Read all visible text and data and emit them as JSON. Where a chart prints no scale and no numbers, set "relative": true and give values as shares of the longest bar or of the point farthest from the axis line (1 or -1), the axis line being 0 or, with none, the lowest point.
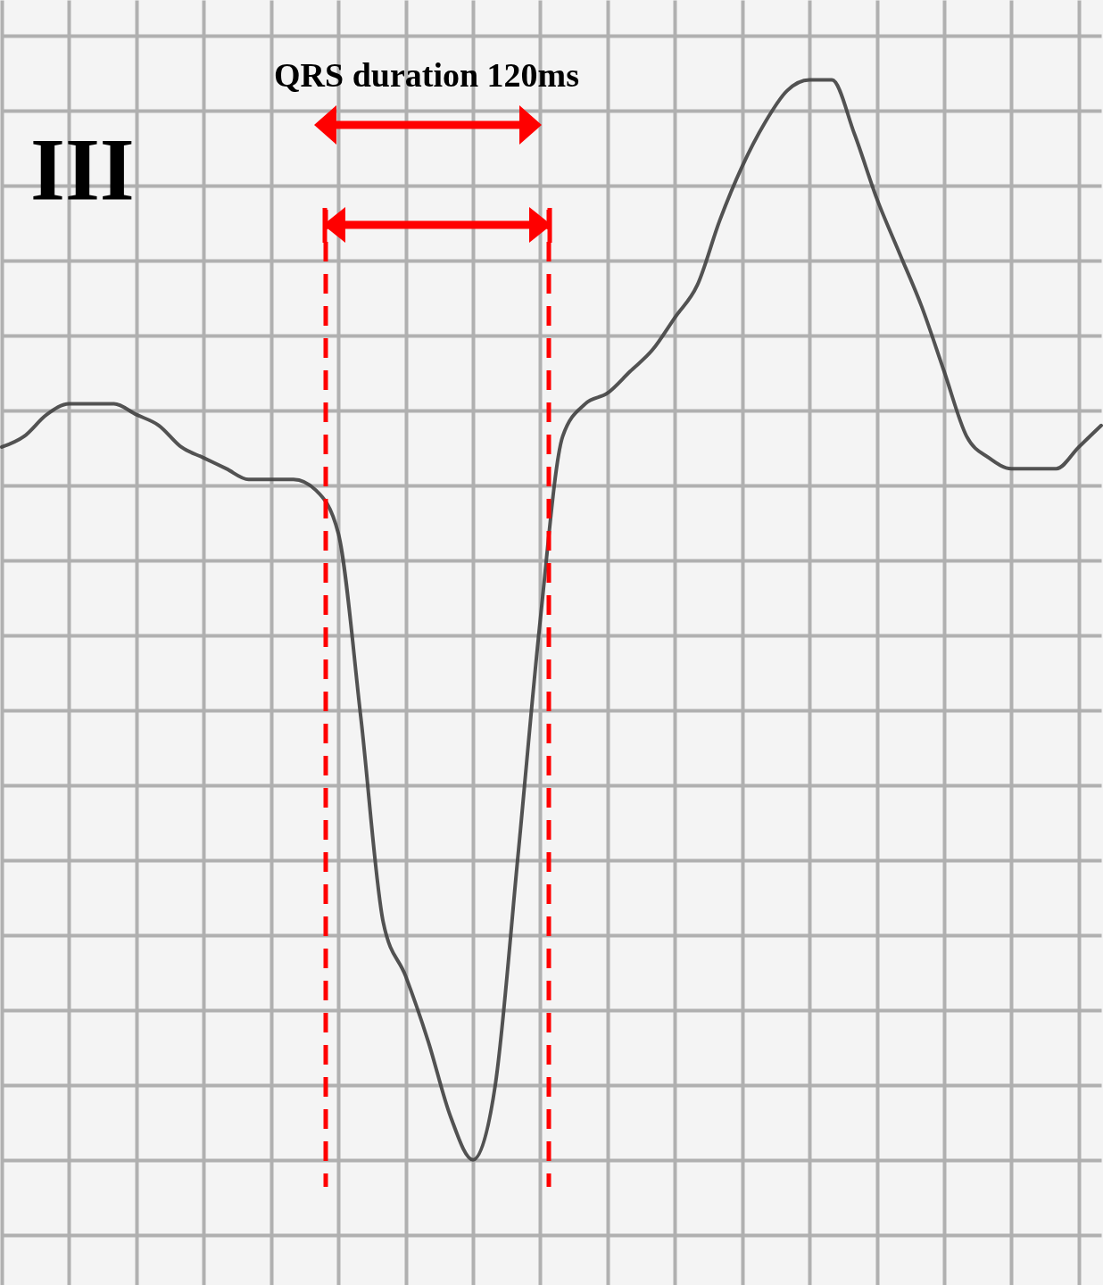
{
  "chart_data": {
    "type": "line",
    "title": "III",
    "annotations": [
      "QRS duration 120ms"
    ],
    "relative": true,
    "grid": true,
    "categories": [
      null,
      null,
      null,
      null,
      null,
      null,
      null,
      null,
      null,
      null,
      null,
      null,
      null,
      null,
      null,
      null,
      null,
      null,
      null,
      null,
      null,
      null,
      null,
      null,
      null,
      null,
      null,
      null,
      null,
      null,
      null,
      null,
      null,
      null,
      null,
      null,
      null,
      null,
      null,
      null,
      null,
      null,
      null,
      null,
      null,
      null,
      null,
      null,
      null,
      null
    ],
    "series": [
      {
        "color": "#404040",
        "values": [
          0.66,
          0.67,
          0.69,
          0.7,
          0.7,
          0.7,
          0.69,
          0.68,
          0.66,
          0.65,
          0.64,
          0.63,
          0.63,
          0.63,
          0.62,
          0.58,
          0.41,
          0.22,
          0.17,
          0.11,
          0.04,
          0,
          0.07,
          0.28,
          0.5,
          0.67,
          0.7,
          0.71,
          0.73,
          0.75,
          0.78,
          0.81,
          0.87,
          0.92,
          0.96,
          0.99,
          1.0,
          1.0,
          0.95,
          0.89,
          0.84,
          0.79,
          0.73,
          0.67,
          0.65,
          0.64,
          0.64,
          0.64,
          0.66,
          0.68
        ]
      }
    ]
  }
}
